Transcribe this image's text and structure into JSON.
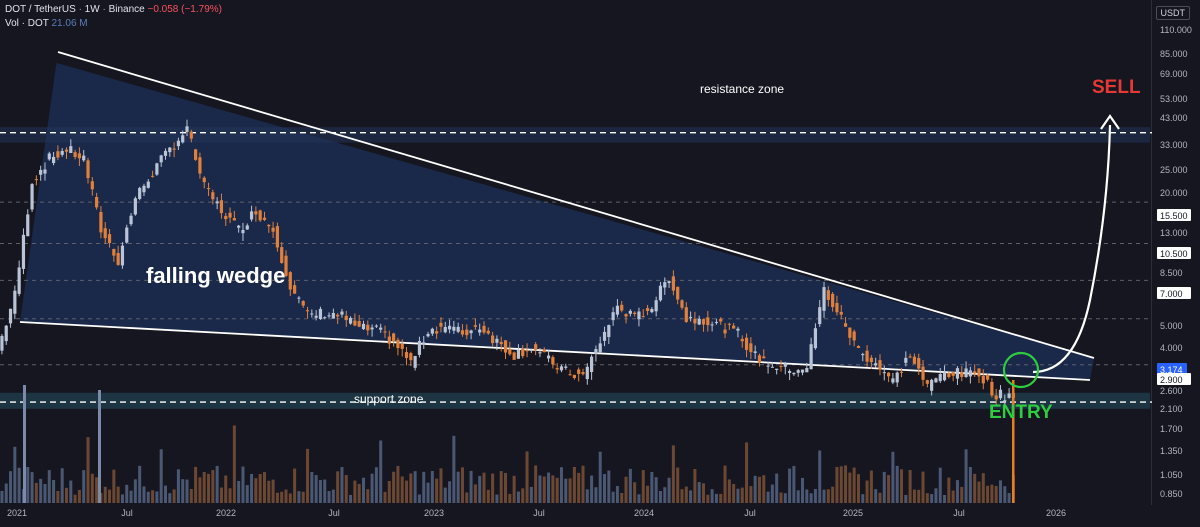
{
  "header": {
    "symbol": "DOT / TetherUS",
    "interval": "1W",
    "exchange": "Binance",
    "change": "−0.058 (−1.79%)",
    "vol_label": "Vol · DOT",
    "vol_value": "21.06 M"
  },
  "chart_data": {
    "type": "candlestick",
    "title": "DOT / TetherUS · 1W · Binance",
    "y_scale": "log",
    "y_unit": "USDT",
    "ylim": [
      0.8,
      130
    ],
    "y_ticks": [
      "110.000",
      "85.000",
      "69.000",
      "53.000",
      "43.000",
      "33.000",
      "25.000",
      "20.000",
      "15.500",
      "13.000",
      "10.500",
      "8.500",
      "7.000",
      "5.000",
      "4.000",
      "3.174",
      "2.900",
      "2.600",
      "2.100",
      "1.700",
      "1.350",
      "1.050",
      "0.850"
    ],
    "highlighted_levels": [
      {
        "label": "50.000",
        "value": 50,
        "style": "dashed-white"
      },
      {
        "label": "24.000",
        "value": 24,
        "style": "dashed"
      },
      {
        "label": "15.500",
        "value": 15.5,
        "style": "dashed"
      },
      {
        "label": "10.500",
        "value": 10.5,
        "style": "dashed"
      },
      {
        "label": "7.000",
        "value": 7,
        "style": "dashed"
      },
      {
        "label": "4.300",
        "value": 4.3,
        "style": "dashed"
      },
      {
        "label": "2.900",
        "value": 2.9,
        "style": "dashed-white"
      }
    ],
    "current_price_label": "3.174",
    "x_ticks": [
      "2021",
      "Jul",
      "2022",
      "Jul",
      "2023",
      "Jul",
      "2024",
      "Jul",
      "2025",
      "Jul",
      "2026"
    ],
    "price_path": [
      [
        "2020-12",
        5.0
      ],
      [
        "2021-01",
        9.0
      ],
      [
        "2021-02",
        30.0
      ],
      [
        "2021-03",
        38.0
      ],
      [
        "2021-04",
        42.0
      ],
      [
        "2021-05",
        38.0
      ],
      [
        "2021-06",
        18.0
      ],
      [
        "2021-07",
        13.0
      ],
      [
        "2021-08",
        25.0
      ],
      [
        "2021-09",
        33.0
      ],
      [
        "2021-10",
        42.0
      ],
      [
        "2021-11",
        52.0
      ],
      [
        "2021-12",
        28.0
      ],
      [
        "2022-01",
        22.0
      ],
      [
        "2022-02",
        18.0
      ],
      [
        "2022-03",
        22.0
      ],
      [
        "2022-04",
        18.0
      ],
      [
        "2022-05",
        10.0
      ],
      [
        "2022-06",
        7.2
      ],
      [
        "2022-07",
        7.5
      ],
      [
        "2022-08",
        7.2
      ],
      [
        "2022-09",
        6.3
      ],
      [
        "2022-10",
        6.2
      ],
      [
        "2022-11",
        5.5
      ],
      [
        "2022-12",
        4.4
      ],
      [
        "2023-01",
        6.2
      ],
      [
        "2023-02",
        6.5
      ],
      [
        "2023-03",
        6.0
      ],
      [
        "2023-04",
        6.5
      ],
      [
        "2023-05",
        5.5
      ],
      [
        "2023-06",
        4.8
      ],
      [
        "2023-07",
        5.2
      ],
      [
        "2023-08",
        4.5
      ],
      [
        "2023-09",
        4.0
      ],
      [
        "2023-10",
        3.8
      ],
      [
        "2023-11",
        5.5
      ],
      [
        "2023-12",
        8.0
      ],
      [
        "2024-01",
        7.0
      ],
      [
        "2024-02",
        8.0
      ],
      [
        "2024-03",
        11.0
      ],
      [
        "2024-04",
        7.0
      ],
      [
        "2024-05",
        7.0
      ],
      [
        "2024-06",
        6.5
      ],
      [
        "2024-07",
        6.0
      ],
      [
        "2024-08",
        4.7
      ],
      [
        "2024-09",
        4.3
      ],
      [
        "2024-10",
        4.1
      ],
      [
        "2024-11",
        4.2
      ],
      [
        "2024-12",
        9.5
      ],
      [
        "2025-01",
        7.0
      ],
      [
        "2025-02",
        5.0
      ],
      [
        "2025-03",
        4.4
      ],
      [
        "2025-04",
        3.6
      ],
      [
        "2025-05",
        4.8
      ],
      [
        "2025-06",
        3.4
      ],
      [
        "2025-07",
        4.0
      ],
      [
        "2025-08",
        3.9
      ],
      [
        "2025-09",
        4.0
      ],
      [
        "2025-10",
        3.1
      ],
      [
        "2025-11",
        3.17
      ]
    ],
    "annotations": {
      "pattern": "falling wedge",
      "resistance": "resistance zone",
      "support": "support zone",
      "sell": "SELL",
      "entry": "ENTRY"
    },
    "colors": {
      "up": "#b9c4d6",
      "down": "#e0803a",
      "wedge_fill": "#1b2d52",
      "sell": "#e53935",
      "entry": "#2ecc40",
      "background": "#161620"
    },
    "grid": false
  }
}
